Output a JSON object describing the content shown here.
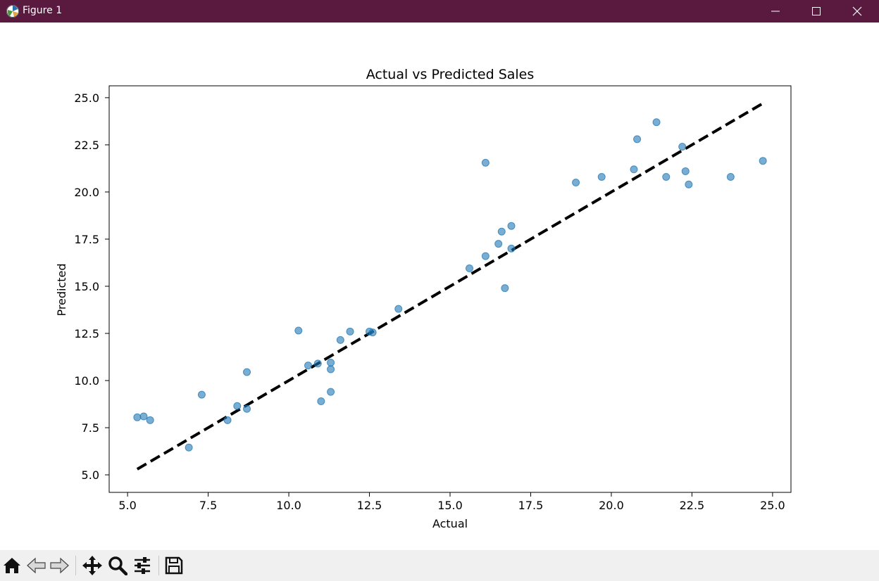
{
  "window": {
    "title": "Figure 1",
    "icons": [
      "matplotlib-icon",
      "minimize-icon",
      "maximize-icon",
      "close-icon"
    ]
  },
  "toolbar": {
    "icons": [
      "home-icon",
      "back-icon",
      "forward-icon",
      "pan-icon",
      "zoom-icon",
      "configure-subplots-icon",
      "save-icon"
    ]
  },
  "chart_data": {
    "type": "scatter",
    "title": "Actual vs Predicted Sales",
    "xlabel": "Actual",
    "ylabel": "Predicted",
    "xlim": [
      4.43,
      25.57
    ],
    "ylim": [
      4.07,
      25.63
    ],
    "xticks": [
      "5.0",
      "7.5",
      "10.0",
      "12.5",
      "15.0",
      "17.5",
      "20.0",
      "22.5",
      "25.0"
    ],
    "yticks": [
      "5.0",
      "7.5",
      "10.0",
      "12.5",
      "15.0",
      "17.5",
      "20.0",
      "22.5",
      "25.0"
    ],
    "grid": false,
    "point_color": "#1f77b4",
    "point_alpha": 0.6,
    "reference_line": {
      "style": "dashed",
      "color": "#000000",
      "from": [
        5.3,
        5.3
      ],
      "to": [
        24.7,
        24.7
      ]
    },
    "points": [
      {
        "x": 5.3,
        "y": 8.05
      },
      {
        "x": 5.5,
        "y": 8.1
      },
      {
        "x": 5.7,
        "y": 7.9
      },
      {
        "x": 6.9,
        "y": 6.45
      },
      {
        "x": 7.3,
        "y": 9.25
      },
      {
        "x": 8.1,
        "y": 7.9
      },
      {
        "x": 8.4,
        "y": 8.65
      },
      {
        "x": 8.7,
        "y": 8.5
      },
      {
        "x": 8.7,
        "y": 10.45
      },
      {
        "x": 10.3,
        "y": 12.65
      },
      {
        "x": 10.6,
        "y": 10.8
      },
      {
        "x": 10.9,
        "y": 10.9
      },
      {
        "x": 11.0,
        "y": 8.9
      },
      {
        "x": 11.3,
        "y": 9.4
      },
      {
        "x": 11.3,
        "y": 10.6
      },
      {
        "x": 11.3,
        "y": 10.95
      },
      {
        "x": 11.6,
        "y": 12.15
      },
      {
        "x": 11.9,
        "y": 12.6
      },
      {
        "x": 12.5,
        "y": 12.6
      },
      {
        "x": 12.6,
        "y": 12.55
      },
      {
        "x": 13.4,
        "y": 13.8
      },
      {
        "x": 15.6,
        "y": 15.95
      },
      {
        "x": 16.1,
        "y": 16.6
      },
      {
        "x": 16.1,
        "y": 21.55
      },
      {
        "x": 16.5,
        "y": 17.25
      },
      {
        "x": 16.6,
        "y": 17.9
      },
      {
        "x": 16.7,
        "y": 14.9
      },
      {
        "x": 16.9,
        "y": 17.0
      },
      {
        "x": 16.9,
        "y": 18.2
      },
      {
        "x": 18.9,
        "y": 20.5
      },
      {
        "x": 19.7,
        "y": 20.8
      },
      {
        "x": 20.7,
        "y": 21.2
      },
      {
        "x": 20.8,
        "y": 22.8
      },
      {
        "x": 21.4,
        "y": 23.7
      },
      {
        "x": 21.7,
        "y": 20.8
      },
      {
        "x": 22.2,
        "y": 22.4
      },
      {
        "x": 22.3,
        "y": 21.1
      },
      {
        "x": 22.4,
        "y": 20.4
      },
      {
        "x": 23.7,
        "y": 20.8
      },
      {
        "x": 24.7,
        "y": 21.65
      }
    ]
  }
}
